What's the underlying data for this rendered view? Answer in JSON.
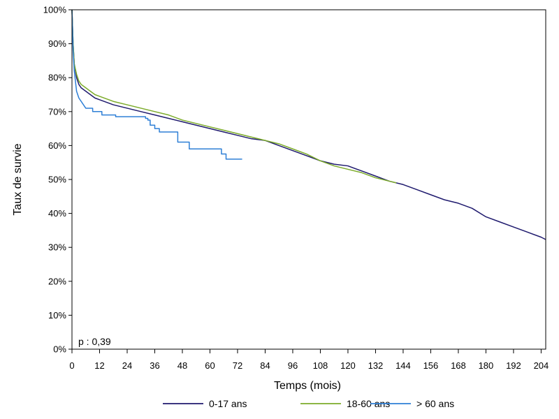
{
  "chart_data": {
    "type": "line",
    "title": "",
    "xlabel": "Temps (mois)",
    "ylabel": "Taux de survie",
    "xlim": [
      0,
      206
    ],
    "ylim": [
      0,
      100
    ],
    "x_ticks": [
      0,
      12,
      24,
      36,
      48,
      60,
      72,
      84,
      96,
      108,
      120,
      132,
      144,
      156,
      168,
      180,
      192,
      204
    ],
    "y_ticks": [
      0,
      10,
      20,
      30,
      40,
      50,
      60,
      70,
      80,
      90,
      100
    ],
    "y_tick_labels": [
      "0%",
      "10%",
      "20%",
      "30%",
      "40%",
      "50%",
      "60%",
      "70%",
      "80%",
      "90%",
      "100%"
    ],
    "annotation": "p : 0,39",
    "legend_position": "bottom",
    "grid": false,
    "series": [
      {
        "name": "0-17 ans",
        "color": "#1f1a6e",
        "points": [
          [
            0,
            100
          ],
          [
            0.5,
            90
          ],
          [
            1,
            84
          ],
          [
            2,
            80
          ],
          [
            3,
            78
          ],
          [
            4,
            77
          ],
          [
            6,
            76
          ],
          [
            8,
            75
          ],
          [
            10,
            74
          ],
          [
            12,
            73.5
          ],
          [
            18,
            72
          ],
          [
            24,
            71
          ],
          [
            30,
            70
          ],
          [
            36,
            69
          ],
          [
            42,
            68
          ],
          [
            48,
            67
          ],
          [
            54,
            66
          ],
          [
            60,
            65
          ],
          [
            66,
            64
          ],
          [
            72,
            63
          ],
          [
            78,
            62
          ],
          [
            84,
            61.5
          ],
          [
            90,
            60
          ],
          [
            96,
            58.5
          ],
          [
            102,
            57
          ],
          [
            108,
            55.5
          ],
          [
            114,
            54.5
          ],
          [
            120,
            54
          ],
          [
            126,
            52.5
          ],
          [
            132,
            51
          ],
          [
            138,
            49.5
          ],
          [
            144,
            48.5
          ],
          [
            150,
            47
          ],
          [
            156,
            45.5
          ],
          [
            162,
            44
          ],
          [
            168,
            43
          ],
          [
            174,
            41.5
          ],
          [
            180,
            39
          ],
          [
            186,
            37.5
          ],
          [
            192,
            36
          ],
          [
            198,
            34.5
          ],
          [
            204,
            33
          ],
          [
            206,
            32.3
          ]
        ]
      },
      {
        "name": "18-60 ans",
        "color": "#7cab2a",
        "points": [
          [
            0,
            100
          ],
          [
            0.5,
            90
          ],
          [
            1,
            84
          ],
          [
            2,
            81
          ],
          [
            3,
            79
          ],
          [
            4,
            78
          ],
          [
            6,
            77
          ],
          [
            8,
            76
          ],
          [
            10,
            75
          ],
          [
            12,
            74.5
          ],
          [
            18,
            73
          ],
          [
            24,
            72
          ],
          [
            30,
            71
          ],
          [
            36,
            70
          ],
          [
            42,
            69
          ],
          [
            48,
            67.5
          ],
          [
            54,
            66.5
          ],
          [
            60,
            65.5
          ],
          [
            66,
            64.5
          ],
          [
            72,
            63.5
          ],
          [
            78,
            62.5
          ],
          [
            84,
            61.5
          ],
          [
            90,
            60.5
          ],
          [
            96,
            59
          ],
          [
            102,
            57.5
          ],
          [
            108,
            55.5
          ],
          [
            114,
            54
          ],
          [
            120,
            53
          ],
          [
            126,
            52
          ],
          [
            132,
            50.5
          ],
          [
            138,
            49.5
          ],
          [
            141,
            49
          ]
        ]
      },
      {
        "name": "> 60 ans",
        "color": "#2e7fd6",
        "points": [
          [
            0,
            100
          ],
          [
            0.5,
            88
          ],
          [
            1,
            82
          ],
          [
            2,
            76
          ],
          [
            3,
            74
          ],
          [
            4,
            73
          ],
          [
            5,
            72
          ],
          [
            6,
            71
          ],
          [
            9,
            71
          ],
          [
            9,
            70
          ],
          [
            13,
            70
          ],
          [
            13,
            69
          ],
          [
            19,
            69
          ],
          [
            19,
            68.5
          ],
          [
            32,
            68.5
          ],
          [
            32,
            68
          ],
          [
            33,
            68
          ],
          [
            33,
            67.5
          ],
          [
            34,
            67.5
          ],
          [
            34,
            66
          ],
          [
            36,
            66
          ],
          [
            36,
            65
          ],
          [
            38,
            65
          ],
          [
            38,
            64
          ],
          [
            40,
            64
          ],
          [
            46,
            64
          ],
          [
            46,
            61
          ],
          [
            51,
            61
          ],
          [
            51,
            59
          ],
          [
            65,
            59
          ],
          [
            65,
            57.5
          ],
          [
            67,
            57.5
          ],
          [
            67,
            56
          ],
          [
            74,
            56
          ]
        ]
      }
    ]
  }
}
